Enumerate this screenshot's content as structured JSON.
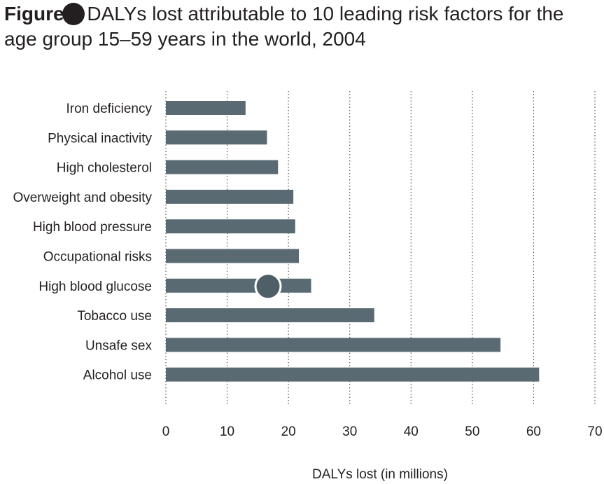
{
  "title": {
    "label": "Figure",
    "text": "DALYs lost attributable to 10 leading risk factors for the age group 15–59 years in the world, 2004"
  },
  "colors": {
    "bar": "#5a6a72",
    "text": "#231f20",
    "grid": "#555555",
    "marker": "#4f5f68"
  },
  "chart_data": {
    "type": "bar",
    "orientation": "horizontal",
    "categories": [
      "Iron deficiency",
      "Physical inactivity",
      "High cholesterol",
      "Overweight and obesity",
      "High blood pressure",
      "Occupational risks",
      "High blood glucose",
      "Tobacco use",
      "Unsafe sex",
      "Alcohol use"
    ],
    "values": [
      13,
      16.5,
      18.3,
      20.8,
      21.1,
      21.7,
      23.7,
      34,
      54.6,
      60.9
    ],
    "xlabel": "DALYs lost (in millions)",
    "ylabel": "",
    "xlim": [
      0,
      70
    ],
    "xticks": [
      "0",
      "10",
      "20",
      "30",
      "40",
      "50",
      "60",
      "70"
    ],
    "grid": "vertical dotted",
    "legend": "none"
  }
}
